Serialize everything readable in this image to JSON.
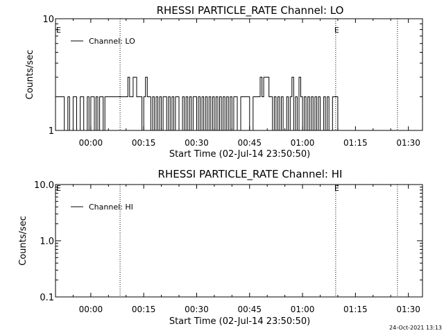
{
  "footer": {
    "timestamp": "24-Oct-2021 13:13"
  },
  "chart_data": [
    {
      "type": "line",
      "title": "RHESSI PARTICLE_RATE Channel: LO",
      "xlabel": "Start Time (02-Jul-14 23:50:50)",
      "ylabel": "Counts/sec",
      "y_scale": "log",
      "ylim": [
        1,
        10
      ],
      "xlim_minutes": [
        -10.0,
        94.0
      ],
      "x_ticks": [
        {
          "min": 0,
          "label": "00:00"
        },
        {
          "min": 15,
          "label": "00:15"
        },
        {
          "min": 30,
          "label": "00:30"
        },
        {
          "min": 45,
          "label": "00:45"
        },
        {
          "min": 60,
          "label": "01:00"
        },
        {
          "min": 75,
          "label": "01:15"
        },
        {
          "min": 90,
          "label": "01:30"
        }
      ],
      "y_ticks": [
        {
          "value": 1,
          "label": "1"
        },
        {
          "value": 10,
          "label": "10"
        }
      ],
      "legend": {
        "placement": "top-left",
        "entries": [
          "Channel: LO"
        ]
      },
      "eclipse_marks": [
        {
          "label": "E",
          "x_min": -9.8
        },
        {
          "label": "E",
          "x_min": 69.0
        }
      ],
      "vlines_minutes": [
        8.3,
        69.4,
        86.9
      ],
      "series": [
        {
          "name": "Channel: LO",
          "x_start_min": -9.5,
          "step_min": 0.5,
          "levels": [
            2,
            2,
            2,
            2,
            1,
            1,
            2,
            1,
            1,
            2,
            2,
            1,
            1,
            2,
            2,
            1,
            1,
            2,
            1,
            2,
            2,
            1,
            2,
            1,
            2,
            2,
            1,
            2,
            2,
            2,
            2,
            2,
            2,
            2,
            2,
            2,
            2,
            2,
            2,
            2,
            3,
            2,
            2,
            3,
            3,
            2,
            2,
            2,
            1,
            2,
            3,
            2,
            2,
            1,
            2,
            1,
            2,
            1,
            2,
            1,
            2,
            2,
            1,
            2,
            1,
            2,
            1,
            2,
            2,
            1,
            1,
            2,
            1,
            2,
            1,
            2,
            1,
            2,
            2,
            1,
            2,
            1,
            2,
            1,
            2,
            1,
            2,
            1,
            2,
            1,
            2,
            1,
            2,
            1,
            2,
            1,
            2,
            1,
            2,
            1,
            2,
            2,
            1,
            1,
            2,
            2,
            2,
            2,
            2,
            1,
            1,
            2,
            2,
            2,
            2,
            3,
            2,
            3,
            3,
            3,
            2,
            2,
            1,
            2,
            1,
            2,
            1,
            2,
            1,
            1,
            2,
            1,
            2,
            3,
            1,
            2,
            1,
            3,
            2,
            1,
            2,
            1,
            2,
            1,
            2,
            1,
            2,
            1,
            2,
            1,
            1,
            2,
            1,
            2,
            1,
            1,
            2,
            2,
            2,
            1
          ]
        }
      ]
    },
    {
      "type": "line",
      "title": "RHESSI PARTICLE_RATE Channel: HI",
      "xlabel": "Start Time (02-Jul-14 23:50:50)",
      "ylabel": "Counts/sec",
      "y_scale": "log",
      "ylim": [
        0.1,
        10
      ],
      "xlim_minutes": [
        -10.0,
        94.0
      ],
      "x_ticks": [
        {
          "min": 0,
          "label": "00:00"
        },
        {
          "min": 15,
          "label": "00:15"
        },
        {
          "min": 30,
          "label": "00:30"
        },
        {
          "min": 45,
          "label": "00:45"
        },
        {
          "min": 60,
          "label": "01:00"
        },
        {
          "min": 75,
          "label": "01:15"
        },
        {
          "min": 90,
          "label": "01:30"
        }
      ],
      "y_ticks": [
        {
          "value": 0.1,
          "label": "0.1"
        },
        {
          "value": 1,
          "label": "1.0"
        },
        {
          "value": 10,
          "label": "10.0"
        }
      ],
      "legend": {
        "placement": "top-left",
        "entries": [
          "Channel: HI"
        ]
      },
      "eclipse_marks": [
        {
          "label": "E",
          "x_min": -9.8
        },
        {
          "label": "E",
          "x_min": 69.0
        }
      ],
      "vlines_minutes": [
        8.3,
        69.4,
        86.9
      ],
      "series": [
        {
          "name": "Channel: HI",
          "levels": []
        }
      ]
    }
  ]
}
